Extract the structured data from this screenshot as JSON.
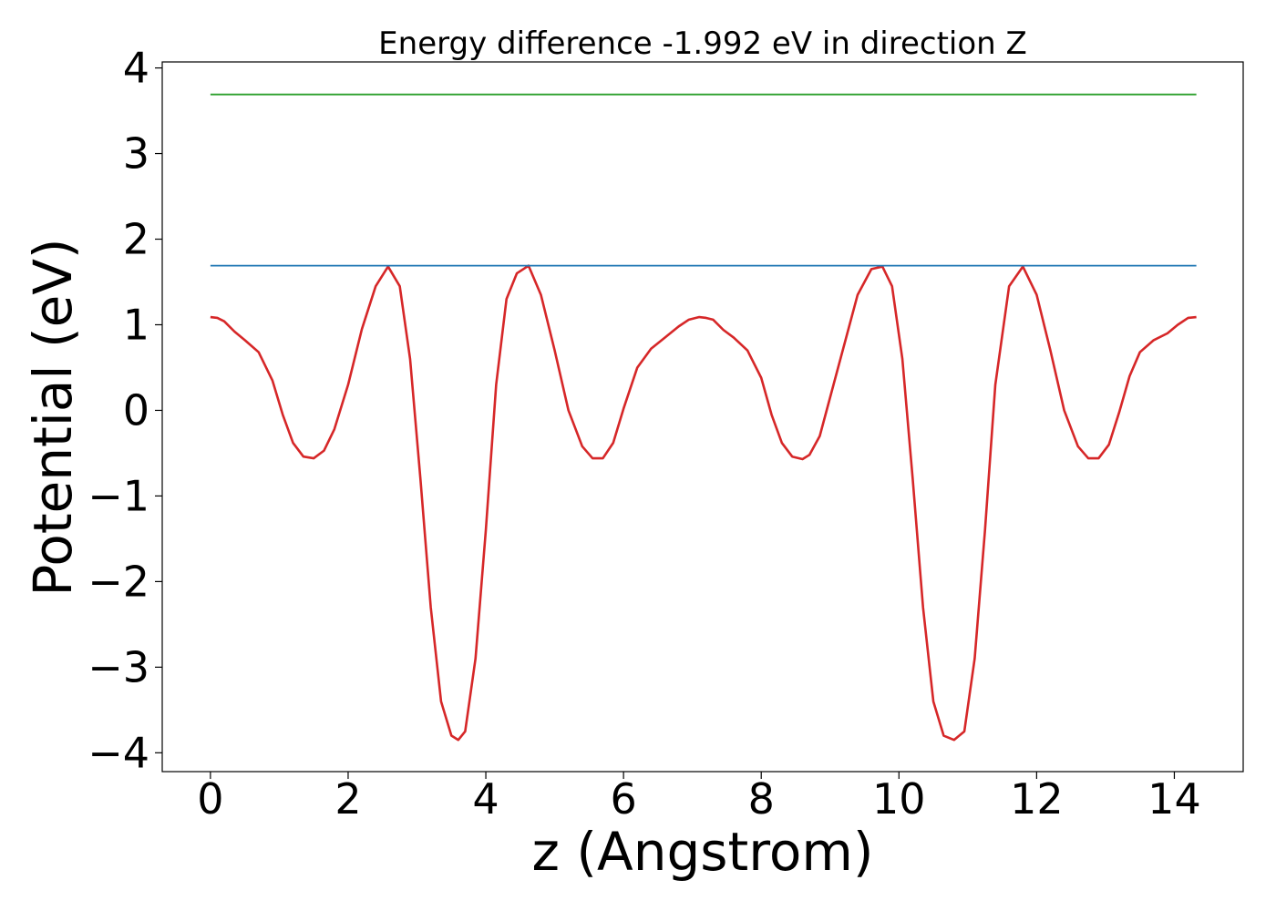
{
  "chart_data": {
    "type": "line",
    "title": "Energy difference -1.992 eV in direction Z",
    "xlabel": "z (Angstrom)",
    "ylabel": "Potential (eV)",
    "xlim": [
      -0.7,
      15.0
    ],
    "ylim": [
      -4.22,
      4.07
    ],
    "x_ticks": [
      0,
      2,
      4,
      6,
      8,
      10,
      12,
      14
    ],
    "x_tick_labels": [
      "0",
      "2",
      "4",
      "6",
      "8",
      "10",
      "12",
      "14"
    ],
    "y_ticks": [
      -4,
      -3,
      -2,
      -1,
      0,
      1,
      2,
      3,
      4
    ],
    "y_tick_labels": [
      "−4",
      "−3",
      "−2",
      "−1",
      "0",
      "1",
      "2",
      "3",
      "4"
    ],
    "grid": false,
    "series": [
      {
        "color": "#d62728",
        "x": [
          0,
          0.1,
          0.2,
          0.35,
          0.5,
          0.7,
          0.9,
          1.05,
          1.2,
          1.35,
          1.5,
          1.65,
          1.8,
          2.0,
          2.2,
          2.4,
          2.58,
          2.75,
          2.9,
          3.05,
          3.2,
          3.35,
          3.5,
          3.6,
          3.7,
          3.85,
          4.0,
          4.15,
          4.3,
          4.45,
          4.62,
          4.8,
          5.0,
          5.2,
          5.4,
          5.55,
          5.7,
          5.85,
          6.0,
          6.2,
          6.4,
          6.6,
          6.8,
          6.95,
          7.1,
          7.2,
          7.3,
          7.45,
          7.6,
          7.8,
          8.0,
          8.15,
          8.3,
          8.45,
          8.6,
          8.7,
          8.85,
          9.0,
          9.2,
          9.4,
          9.6,
          9.76,
          9.9,
          10.05,
          10.2,
          10.35,
          10.5,
          10.65,
          10.8,
          10.95,
          11.1,
          11.25,
          11.4,
          11.6,
          11.8,
          12.0,
          12.2,
          12.4,
          12.6,
          12.75,
          12.9,
          13.05,
          13.2,
          13.35,
          13.5,
          13.7,
          13.9,
          14.05,
          14.2,
          14.32
        ],
        "y": [
          1.09,
          1.08,
          1.04,
          0.92,
          0.82,
          0.68,
          0.35,
          -0.05,
          -0.38,
          -0.54,
          -0.56,
          -0.47,
          -0.22,
          0.3,
          0.95,
          1.45,
          1.68,
          1.45,
          0.6,
          -0.8,
          -2.3,
          -3.4,
          -3.8,
          -3.85,
          -3.75,
          -2.9,
          -1.4,
          0.3,
          1.3,
          1.6,
          1.69,
          1.35,
          0.7,
          0.0,
          -0.42,
          -0.56,
          -0.56,
          -0.38,
          0.02,
          0.5,
          0.72,
          0.85,
          0.98,
          1.06,
          1.09,
          1.08,
          1.06,
          0.94,
          0.85,
          0.7,
          0.38,
          -0.05,
          -0.38,
          -0.54,
          -0.57,
          -0.52,
          -0.3,
          0.15,
          0.75,
          1.35,
          1.65,
          1.68,
          1.45,
          0.6,
          -0.8,
          -2.3,
          -3.4,
          -3.8,
          -3.85,
          -3.75,
          -2.9,
          -1.4,
          0.3,
          1.45,
          1.68,
          1.35,
          0.7,
          0.0,
          -0.42,
          -0.56,
          -0.56,
          -0.4,
          -0.02,
          0.4,
          0.68,
          0.82,
          0.9,
          1.0,
          1.08,
          1.09
        ]
      },
      {
        "color": "#1f77b4",
        "x": [
          0,
          14.32
        ],
        "y": [
          1.69,
          1.69
        ]
      },
      {
        "color": "#2ca02c",
        "x": [
          0,
          14.32
        ],
        "y": [
          3.69,
          3.69
        ]
      }
    ]
  }
}
